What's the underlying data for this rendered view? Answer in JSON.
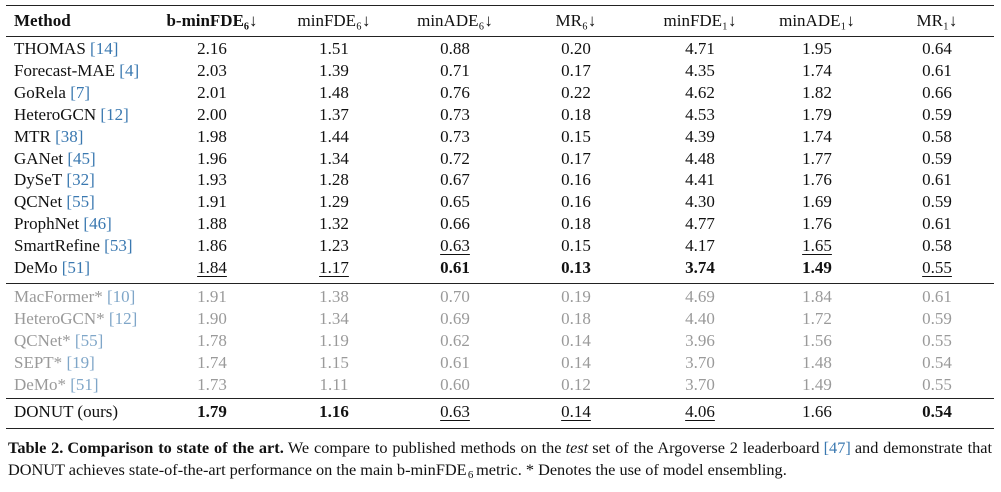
{
  "table": {
    "header": [
      "Method",
      "b-minFDE₆↓",
      "minFDE₆↓",
      "minADE₆↓",
      "MR₆↓",
      "minFDE₁↓",
      "minADE₁↓",
      "MR₁↓"
    ],
    "bold_header": [
      0,
      1
    ],
    "groups": [
      {
        "style": "normal",
        "rows": [
          {
            "method": "THOMAS",
            "ref": "[14]",
            "values": [
              "2.16",
              "1.51",
              "0.88",
              "0.20",
              "4.71",
              "1.95",
              "0.64"
            ]
          },
          {
            "method": "Forecast-MAE",
            "ref": "[4]",
            "values": [
              "2.03",
              "1.39",
              "0.71",
              "0.17",
              "4.35",
              "1.74",
              "0.61"
            ]
          },
          {
            "method": "GoRela",
            "ref": "[7]",
            "values": [
              "2.01",
              "1.48",
              "0.76",
              "0.22",
              "4.62",
              "1.82",
              "0.66"
            ]
          },
          {
            "method": "HeteroGCN",
            "ref": "[12]",
            "values": [
              "2.00",
              "1.37",
              "0.73",
              "0.18",
              "4.53",
              "1.79",
              "0.59"
            ]
          },
          {
            "method": "MTR",
            "ref": "[38]",
            "values": [
              "1.98",
              "1.44",
              "0.73",
              "0.15",
              "4.39",
              "1.74",
              "0.58"
            ]
          },
          {
            "method": "GANet",
            "ref": "[45]",
            "values": [
              "1.96",
              "1.34",
              "0.72",
              "0.17",
              "4.48",
              "1.77",
              "0.59"
            ]
          },
          {
            "method": "DySeT",
            "ref": "[32]",
            "values": [
              "1.93",
              "1.28",
              "0.67",
              "0.16",
              "4.41",
              "1.76",
              "0.61"
            ]
          },
          {
            "method": "QCNet",
            "ref": "[55]",
            "values": [
              "1.91",
              "1.29",
              "0.65",
              "0.16",
              "4.30",
              "1.69",
              "0.59"
            ]
          },
          {
            "method": "ProphNet",
            "ref": "[46]",
            "values": [
              "1.88",
              "1.32",
              "0.66",
              "0.18",
              "4.77",
              "1.76",
              "0.61"
            ]
          },
          {
            "method": "SmartRefine",
            "ref": "[53]",
            "values": [
              "1.86",
              "1.23",
              "0.63",
              "0.15",
              "4.17",
              "1.65",
              "0.58"
            ],
            "underline": [
              2,
              5
            ]
          },
          {
            "method": "DeMo",
            "ref": "[51]",
            "values": [
              "1.84",
              "1.17",
              "0.61",
              "0.13",
              "3.74",
              "1.49",
              "0.55"
            ],
            "bold": [
              2,
              3,
              4,
              5
            ],
            "underline": [
              0,
              1,
              6
            ]
          }
        ]
      },
      {
        "style": "gray",
        "rows": [
          {
            "method": "MacFormer*",
            "ref": "[10]",
            "values": [
              "1.91",
              "1.38",
              "0.70",
              "0.19",
              "4.69",
              "1.84",
              "0.61"
            ]
          },
          {
            "method": "HeteroGCN*",
            "ref": "[12]",
            "values": [
              "1.90",
              "1.34",
              "0.69",
              "0.18",
              "4.40",
              "1.72",
              "0.59"
            ]
          },
          {
            "method": "QCNet*",
            "ref": "[55]",
            "values": [
              "1.78",
              "1.19",
              "0.62",
              "0.14",
              "3.96",
              "1.56",
              "0.55"
            ]
          },
          {
            "method": "SEPT*",
            "ref": "[19]",
            "values": [
              "1.74",
              "1.15",
              "0.61",
              "0.14",
              "3.70",
              "1.48",
              "0.54"
            ]
          },
          {
            "method": "DeMo*",
            "ref": "[51]",
            "values": [
              "1.73",
              "1.11",
              "0.60",
              "0.12",
              "3.70",
              "1.49",
              "0.55"
            ]
          }
        ]
      },
      {
        "style": "normal",
        "rows": [
          {
            "method": "DONUT (ours)",
            "values": [
              "1.79",
              "1.16",
              "0.63",
              "0.14",
              "4.06",
              "1.66",
              "0.54"
            ],
            "bold": [
              0,
              1,
              6
            ],
            "underline": [
              2,
              3,
              4
            ]
          }
        ]
      }
    ]
  },
  "caption": [
    {
      "text": "Table 2.",
      "style": "b"
    },
    {
      "text": "Comparison to state of the art.",
      "style": "b"
    },
    {
      "text": "We compare to published methods on the",
      "style": "n"
    },
    {
      "text": "test",
      "style": "i"
    },
    {
      "text": "set of the Argoverse 2 leaderboard",
      "style": "n"
    },
    {
      "text": "[47]",
      "style": "ref"
    },
    {
      "text": "and demonstrate that DONUT achieves state-of-the-art performance on the main b-minFDE",
      "style": "n"
    },
    {
      "text": "6",
      "style": "sub"
    },
    {
      "text": "metric. * Denotes the use of model ensembling.",
      "style": "n"
    }
  ]
}
